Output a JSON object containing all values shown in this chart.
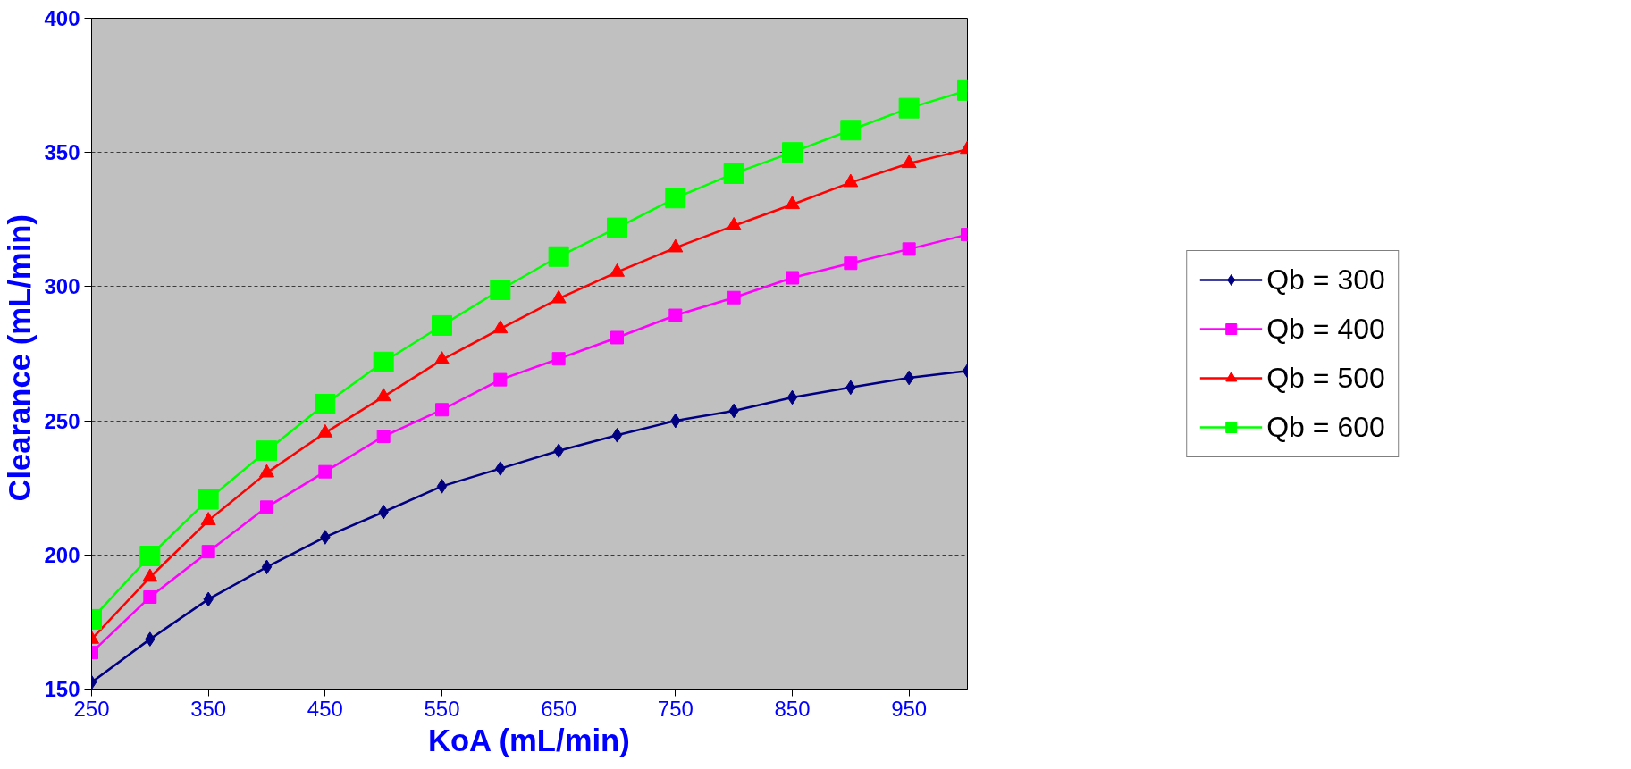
{
  "chart_data": {
    "type": "line",
    "xlabel": "KoA (mL/min)",
    "ylabel": "Clearance  (mL/min)",
    "x": [
      250,
      300,
      350,
      400,
      450,
      500,
      550,
      600,
      650,
      700,
      750,
      800,
      850,
      900,
      950,
      1000
    ],
    "xlim": [
      250,
      1000
    ],
    "xticks": [
      250,
      350,
      450,
      550,
      650,
      750,
      850,
      950
    ],
    "ylim": [
      150,
      400
    ],
    "yticks": [
      150,
      200,
      250,
      300,
      350,
      400
    ],
    "grid": "y",
    "legend": "right",
    "line_style": "solid",
    "series": [
      {
        "name": "Qb = 300",
        "color": "#000080",
        "marker": "diamond",
        "values": [
          152.5,
          168.6,
          183.5,
          195.5,
          206.6,
          216,
          225.6,
          232.2,
          238.8,
          244.6,
          250,
          253.7,
          258.7,
          262.4,
          266,
          268.6
        ]
      },
      {
        "name": "Qb = 400",
        "color": "#ff00ff",
        "marker": "square",
        "values": [
          163.6,
          184.3,
          201.2,
          217.8,
          231,
          244.2,
          254.1,
          265.3,
          273.1,
          281,
          289.3,
          295.9,
          303.3,
          308.7,
          314,
          319.4
        ]
      },
      {
        "name": "Qb = 500",
        "color": "#ff0000",
        "marker": "triangle",
        "values": [
          168.6,
          191.7,
          212.8,
          230.6,
          245.5,
          259,
          272.7,
          284.3,
          295.5,
          305.4,
          314.5,
          322.7,
          330.6,
          338.8,
          345.9,
          351.2
        ]
      },
      {
        "name": "Qb = 600",
        "color": "#00ff00",
        "marker": "square",
        "values": [
          176,
          199.6,
          220.7,
          238.8,
          256.2,
          271.9,
          285.5,
          298.8,
          311.2,
          321.9,
          333,
          342.1,
          350,
          358.3,
          366.5,
          373.1
        ]
      }
    ]
  }
}
